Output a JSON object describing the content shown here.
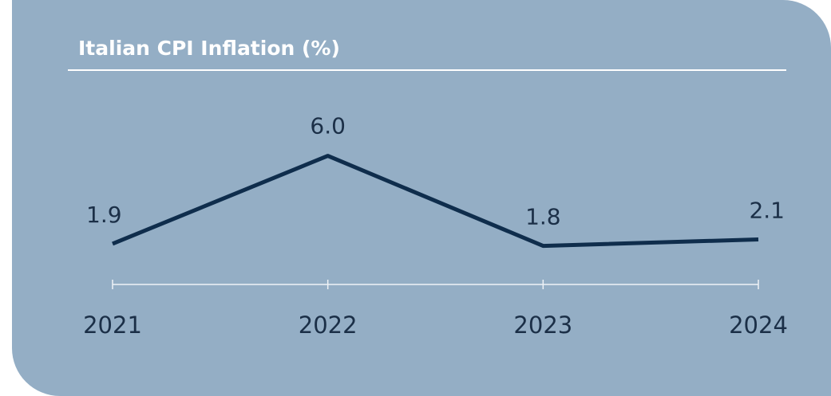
{
  "chart_data": {
    "type": "line",
    "title": "Italian CPI Inflation (%)",
    "categories": [
      "2021",
      "2022",
      "2023",
      "2024"
    ],
    "series": [
      {
        "color": "#0f2d4c",
        "values": [
          1.9,
          6.0,
          1.8,
          2.1
        ],
        "value_labels": [
          "1.9",
          "6.0",
          "1.8",
          "2.1"
        ]
      }
    ],
    "ylim": [
      0,
      10
    ]
  }
}
